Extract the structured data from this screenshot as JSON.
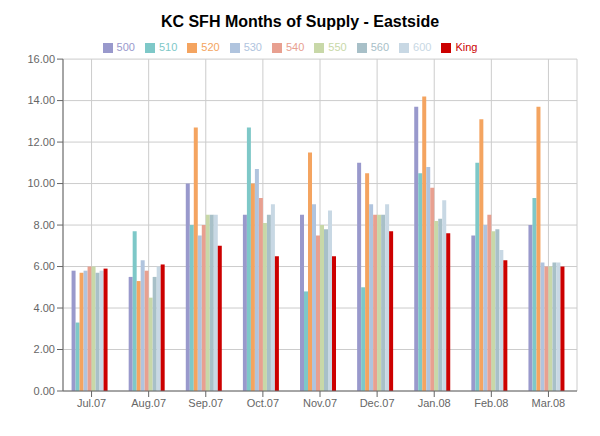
{
  "chart_data": {
    "type": "bar",
    "title": "KC SFH Months of Supply - Eastside",
    "categories": [
      "Jul.07",
      "Aug.07",
      "Sep.07",
      "Oct.07",
      "Nov.07",
      "Dec.07",
      "Jan.08",
      "Feb.08",
      "Mar.08"
    ],
    "series": [
      {
        "name": "500",
        "color": "#9999CC",
        "values": [
          5.8,
          5.5,
          10.0,
          8.5,
          8.5,
          11.0,
          13.7,
          7.5,
          8.0
        ]
      },
      {
        "name": "510",
        "color": "#7EC8C8",
        "values": [
          3.3,
          7.7,
          8.0,
          12.7,
          4.8,
          5.0,
          10.5,
          11.0,
          9.3
        ]
      },
      {
        "name": "520",
        "color": "#F4A460",
        "values": [
          5.7,
          5.3,
          12.7,
          10.0,
          11.5,
          10.5,
          14.2,
          13.1,
          13.7
        ]
      },
      {
        "name": "530",
        "color": "#B0C4DE",
        "values": [
          5.8,
          6.3,
          7.5,
          10.7,
          9.0,
          9.0,
          10.8,
          8.0,
          6.2
        ]
      },
      {
        "name": "540",
        "color": "#E8A090",
        "values": [
          6.0,
          5.8,
          8.0,
          9.3,
          7.5,
          8.5,
          9.8,
          8.5,
          6.0
        ]
      },
      {
        "name": "550",
        "color": "#C8D8A8",
        "values": [
          6.0,
          4.5,
          8.5,
          8.1,
          8.0,
          8.5,
          8.2,
          7.7,
          6.0
        ]
      },
      {
        "name": "560",
        "color": "#A8C0C8",
        "values": [
          5.7,
          5.5,
          8.5,
          8.5,
          7.8,
          8.5,
          8.3,
          7.8,
          6.2
        ]
      },
      {
        "name": "600",
        "color": "#C8D8E4",
        "values": [
          5.8,
          6.0,
          8.5,
          9.0,
          8.7,
          9.0,
          9.2,
          6.8,
          6.2
        ]
      },
      {
        "name": "King",
        "color": "#CC0000",
        "values": [
          5.9,
          6.1,
          7.0,
          6.5,
          6.5,
          7.7,
          7.6,
          6.3,
          6.0
        ]
      }
    ],
    "ylim": [
      0.0,
      16.0
    ],
    "yticks": [
      {
        "value": 0,
        "label": "0.00"
      },
      {
        "value": 2,
        "label": "2.00"
      },
      {
        "value": 4,
        "label": "4.00"
      },
      {
        "value": 6,
        "label": "6.00"
      },
      {
        "value": 8,
        "label": "8.00"
      },
      {
        "value": 10,
        "label": "10.00"
      },
      {
        "value": 12,
        "label": "12.00"
      },
      {
        "value": 14,
        "label": "14.00"
      },
      {
        "value": 16,
        "label": "16.00"
      }
    ],
    "grid": true,
    "legend": "top"
  }
}
